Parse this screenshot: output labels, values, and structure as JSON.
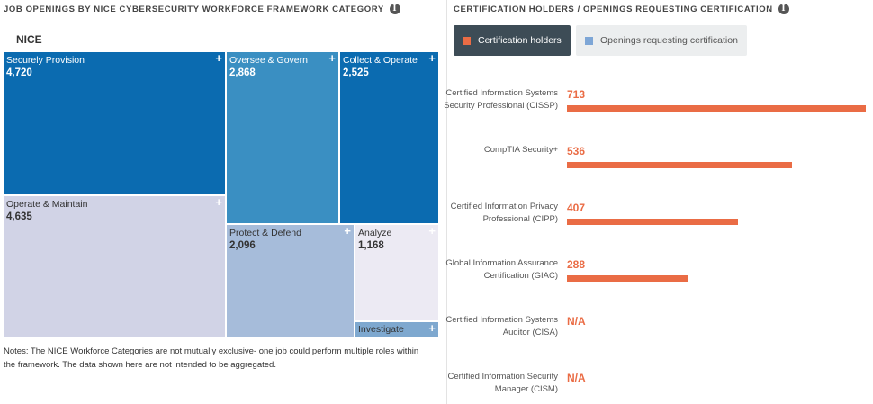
{
  "left_title": "JOB OPENINGS BY NICE CYBERSECURITY WORKFORCE FRAMEWORK CATEGORY",
  "right_title": "CERTIFICATION HOLDERS / OPENINGS REQUESTING CERTIFICATION",
  "info_glyph": "i",
  "plus_glyph": "+",
  "nice_label": "NICE",
  "notes": "Notes: The NICE Workforce Categories are not mutually exclusive- one job could perform multiple roles within the framework. The data shown here are not intended to be aggregated.",
  "legend": {
    "cert_holders": "Certification holders",
    "openings_requesting": "Openings requesting certification",
    "cert_color": "#ea6c45",
    "open_color": "#7ea6d6"
  },
  "chart_data": [
    {
      "type": "treemap",
      "categories": [
        "Securely Provision",
        "Oversee & Govern",
        "Collect & Operate",
        "Operate & Maintain",
        "Protect & Defend",
        "Analyze",
        "Investigate"
      ],
      "values": [
        "4,720",
        "2,868",
        "2,525",
        "4,635",
        "2,096",
        "1,168",
        ""
      ],
      "colors": [
        "#0b6bb0",
        "#3a8fc2",
        "#0b6bb0",
        "#d1d3e6",
        "#a6bcda",
        "#eceaf3",
        "#7ea8cf"
      ]
    },
    {
      "type": "bar",
      "categories": [
        "Certified Information Systems Security Professional (CISSP)",
        "CompTIA Security+",
        "Certified Information Privacy Professional (CIPP)",
        "Global Information Assurance Certification (GIAC)",
        "Certified Information Systems Auditor (CISA)",
        "Certified Information Security Manager (CISM)"
      ],
      "values": [
        713,
        536,
        407,
        288,
        null,
        null
      ],
      "value_labels": [
        "713",
        "536",
        "407",
        "288",
        "N/A",
        "N/A"
      ],
      "xlim": [
        0,
        713
      ]
    }
  ]
}
